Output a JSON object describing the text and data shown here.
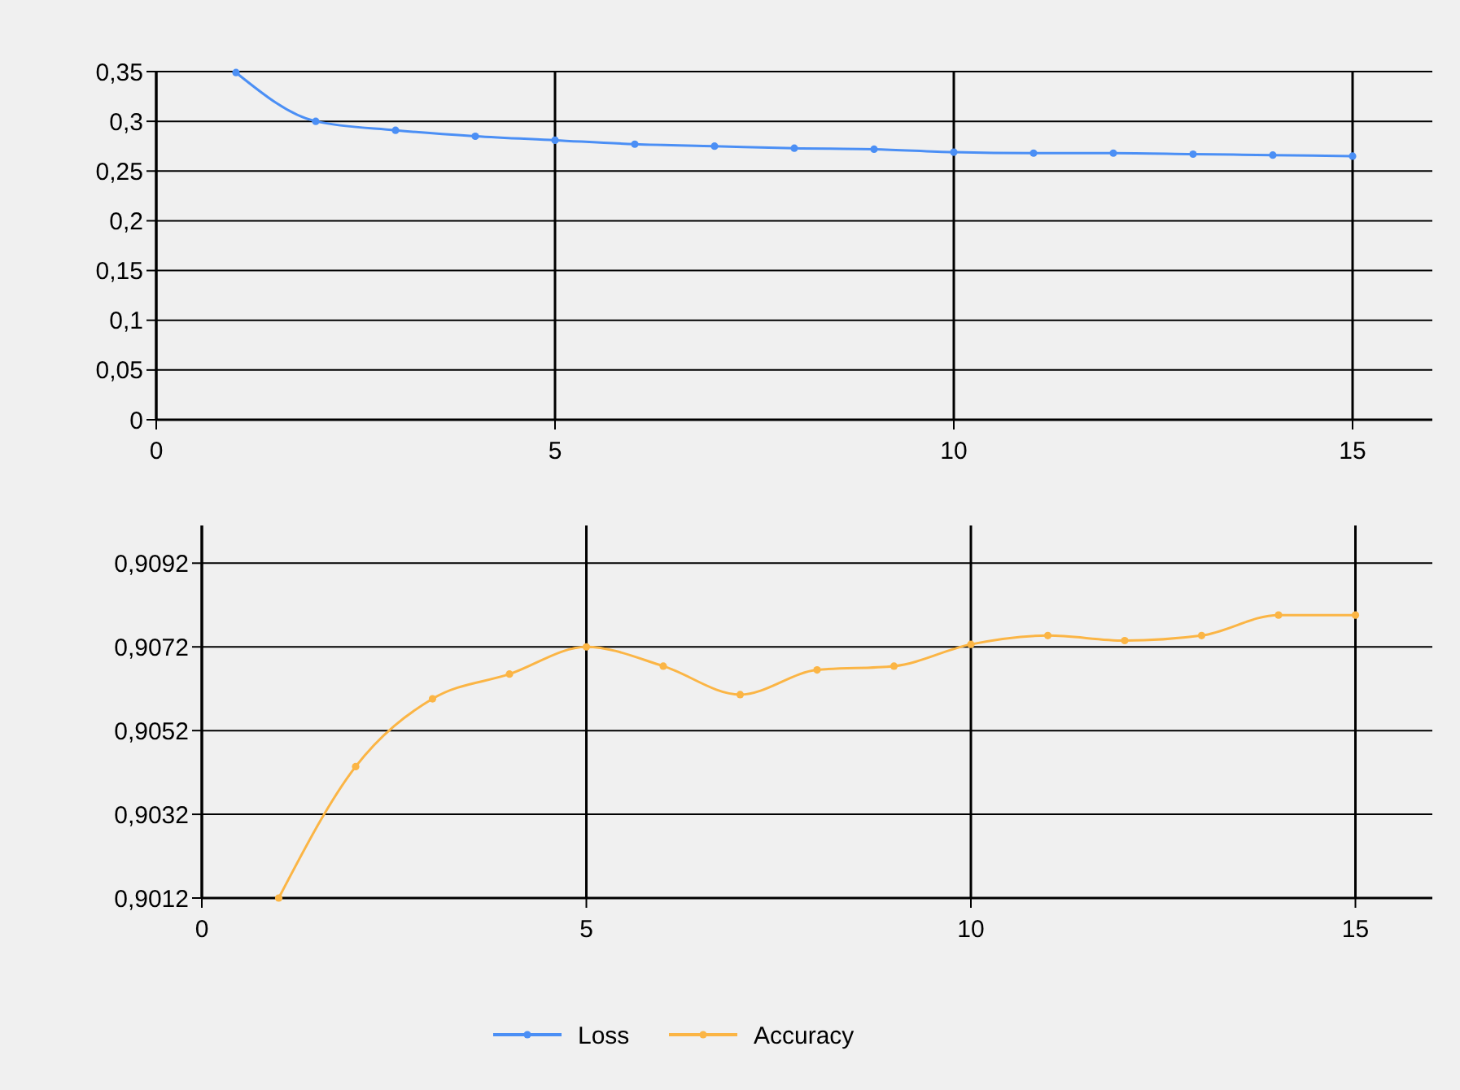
{
  "chart_data": [
    {
      "type": "line",
      "x": [
        1,
        2,
        3,
        4,
        5,
        6,
        7,
        8,
        9,
        10,
        11,
        12,
        13,
        14,
        15
      ],
      "xlim": [
        0,
        16
      ],
      "xticks": [
        0,
        5,
        10,
        15
      ],
      "ylim": [
        0,
        0.35
      ],
      "yticks": [
        {
          "value": 0,
          "label": "0"
        },
        {
          "value": 0.05,
          "label": "0,05"
        },
        {
          "value": 0.1,
          "label": "0,1"
        },
        {
          "value": 0.15,
          "label": "0,15"
        },
        {
          "value": 0.2,
          "label": "0,2"
        },
        {
          "value": 0.25,
          "label": "0,25"
        },
        {
          "value": 0.3,
          "label": "0,3"
        },
        {
          "value": 0.35,
          "label": "0,35"
        }
      ],
      "grid": true,
      "marker": "circle",
      "legend": "bottom",
      "series": [
        {
          "name": "Loss",
          "color": "#4b8ff5",
          "values": [
            0.349,
            0.3,
            0.291,
            0.285,
            0.281,
            0.277,
            0.275,
            0.273,
            0.272,
            0.269,
            0.268,
            0.268,
            0.267,
            0.266,
            0.265
          ]
        }
      ]
    },
    {
      "type": "line",
      "x": [
        1,
        2,
        3,
        4,
        5,
        6,
        7,
        8,
        9,
        10,
        11,
        12,
        13,
        14,
        15
      ],
      "xlim": [
        0,
        16
      ],
      "xticks": [
        0,
        5,
        10,
        15
      ],
      "ylim": [
        0.9012,
        0.9101
      ],
      "yticks": [
        {
          "value": 0.9012,
          "label": "0,9012"
        },
        {
          "value": 0.9032,
          "label": "0,9032"
        },
        {
          "value": 0.9052,
          "label": "0,9052"
        },
        {
          "value": 0.9072,
          "label": "0,9072"
        },
        {
          "value": 0.9092,
          "label": "0,9092"
        }
      ],
      "grid": true,
      "marker": "circle",
      "legend": "bottom",
      "series": [
        {
          "name": "Accuracy",
          "color": "#fbb545",
          "values": [
            0.9012,
            0.90434,
            0.90596,
            0.90655,
            0.9072,
            0.90674,
            0.90606,
            0.90665,
            0.90674,
            0.90726,
            0.90747,
            0.90735,
            0.90747,
            0.90796,
            0.90796
          ]
        }
      ]
    }
  ]
}
